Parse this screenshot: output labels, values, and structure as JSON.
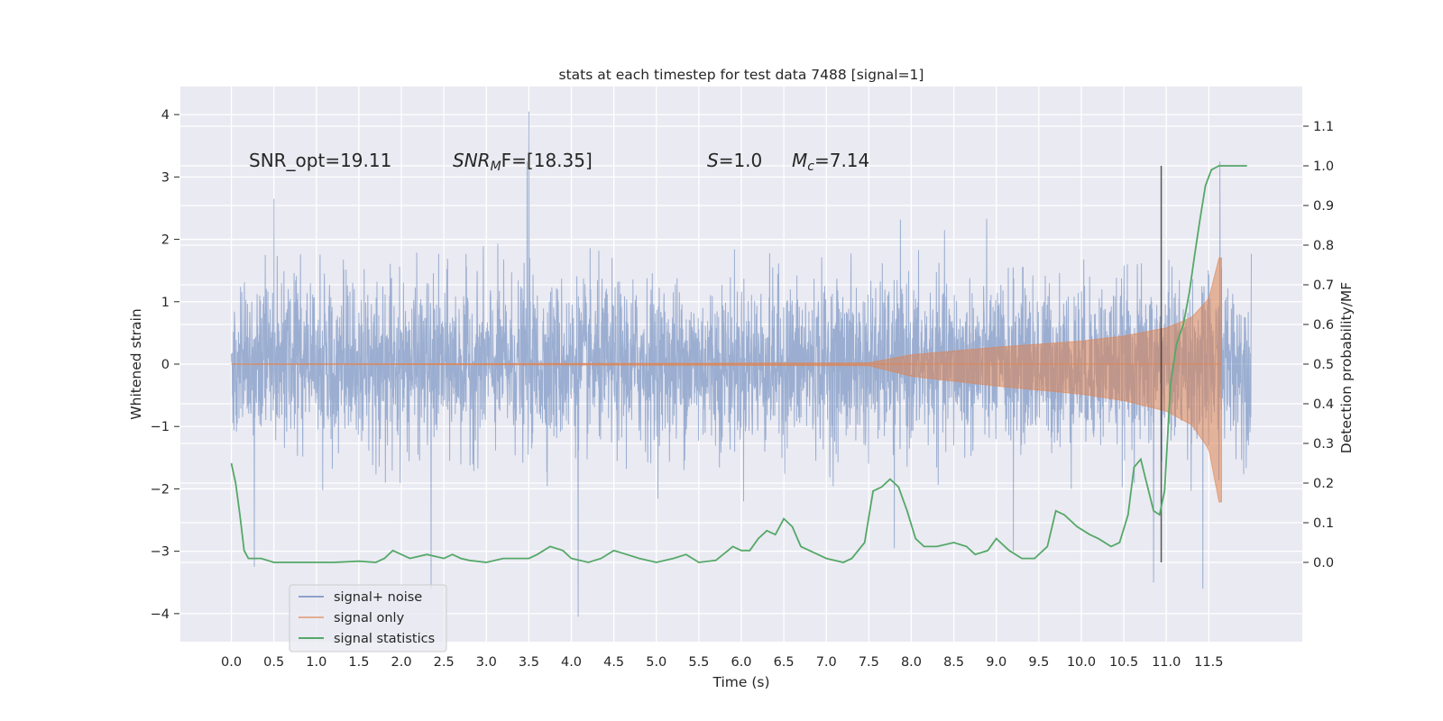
{
  "chart_data": {
    "type": "line",
    "title": "stats at each timestep for test data 7488 [signal=1]",
    "xlabel": "Time (s)",
    "ylabel": "Whitened strain",
    "ylabel_right": "Detection probability/MF",
    "xlim": [
      -0.6,
      12.6
    ],
    "ylim": [
      -4.45,
      4.45
    ],
    "ylim_right": [
      -0.2,
      1.2
    ],
    "x_ticks": [
      "0.0",
      "0.5",
      "1.0",
      "1.5",
      "2.0",
      "2.5",
      "3.0",
      "3.5",
      "4.0",
      "4.5",
      "5.0",
      "5.5",
      "6.0",
      "6.5",
      "7.0",
      "7.5",
      "8.0",
      "8.5",
      "9.0",
      "9.5",
      "10.0",
      "10.5",
      "11.0",
      "11.5"
    ],
    "y_ticks": [
      "−4",
      "−3",
      "−2",
      "−1",
      "0",
      "1",
      "2",
      "3",
      "4"
    ],
    "y_ticks_right": [
      "0.0",
      "0.1",
      "0.2",
      "0.3",
      "0.4",
      "0.5",
      "0.6",
      "0.7",
      "0.8",
      "0.9",
      "1.0",
      "1.1"
    ],
    "grid": true,
    "legend_position": "lower-left",
    "annotations": {
      "snr_opt": "SNR_opt=19.11",
      "snr_mf_symbol": "SNR",
      "snr_mf_sub": "M",
      "snr_mf_rest": "F=[18.35]",
      "s_symbol": "S",
      "s_rest": "=1.0",
      "mc_symbol": "M",
      "mc_sub": "c",
      "mc_rest": "=7.14"
    },
    "vertical_line_x": 10.94,
    "series": [
      {
        "name": "signal+ noise",
        "color": "#4c72b0",
        "axis": "left",
        "x_range": [
          0.0,
          12.0
        ],
        "std": 0.65,
        "peaks": [
          {
            "x": 0.27,
            "y": -3.25
          },
          {
            "x": 0.5,
            "y": 2.65
          },
          {
            "x": 2.35,
            "y": -3.6
          },
          {
            "x": 3.5,
            "y": 4.05
          },
          {
            "x": 4.08,
            "y": -4.05
          },
          {
            "x": 10.85,
            "y": -3.5
          },
          {
            "x": 11.43,
            "y": -3.6
          },
          {
            "x": 11.63,
            "y": -3.7
          },
          {
            "x": 11.63,
            "y": 3.25
          },
          {
            "x": 3.48,
            "y": 3.25
          },
          {
            "x": 9.2,
            "y": -3.0
          },
          {
            "x": 7.8,
            "y": -2.95
          }
        ]
      },
      {
        "name": "signal only",
        "color": "#dd8452",
        "axis": "left",
        "x_range": [
          0.0,
          11.65
        ],
        "envelope": [
          {
            "x": 0.0,
            "y": 0.0
          },
          {
            "x": 7.5,
            "y": 0.02
          },
          {
            "x": 8.0,
            "y": 0.15
          },
          {
            "x": 9.0,
            "y": 0.27
          },
          {
            "x": 10.0,
            "y": 0.37
          },
          {
            "x": 10.5,
            "y": 0.45
          },
          {
            "x": 11.0,
            "y": 0.58
          },
          {
            "x": 11.3,
            "y": 0.75
          },
          {
            "x": 11.5,
            "y": 1.05
          },
          {
            "x": 11.62,
            "y": 1.7
          },
          {
            "x": 11.65,
            "y": 1.7
          }
        ]
      },
      {
        "name": "signal statistics",
        "color": "#55a868",
        "axis": "right",
        "points": [
          [
            0.0,
            0.25
          ],
          [
            0.05,
            0.2
          ],
          [
            0.1,
            0.12
          ],
          [
            0.15,
            0.03
          ],
          [
            0.2,
            0.01
          ],
          [
            0.3,
            0.01
          ],
          [
            0.35,
            0.01
          ],
          [
            0.5,
            0.0
          ],
          [
            0.8,
            0.0
          ],
          [
            1.0,
            0.0
          ],
          [
            1.2,
            0.0
          ],
          [
            1.5,
            0.003
          ],
          [
            1.7,
            0.0
          ],
          [
            1.8,
            0.01
          ],
          [
            1.9,
            0.03
          ],
          [
            2.0,
            0.02
          ],
          [
            2.1,
            0.01
          ],
          [
            2.3,
            0.02
          ],
          [
            2.5,
            0.01
          ],
          [
            2.6,
            0.02
          ],
          [
            2.7,
            0.01
          ],
          [
            2.8,
            0.005
          ],
          [
            3.0,
            0.0
          ],
          [
            3.2,
            0.01
          ],
          [
            3.5,
            0.01
          ],
          [
            3.6,
            0.02
          ],
          [
            3.75,
            0.04
          ],
          [
            3.9,
            0.03
          ],
          [
            4.0,
            0.01
          ],
          [
            4.2,
            0.0
          ],
          [
            4.35,
            0.01
          ],
          [
            4.5,
            0.03
          ],
          [
            4.65,
            0.02
          ],
          [
            4.8,
            0.01
          ],
          [
            5.0,
            0.0
          ],
          [
            5.2,
            0.01
          ],
          [
            5.35,
            0.02
          ],
          [
            5.5,
            0.0
          ],
          [
            5.7,
            0.005
          ],
          [
            5.9,
            0.04
          ],
          [
            6.0,
            0.03
          ],
          [
            6.1,
            0.03
          ],
          [
            6.2,
            0.06
          ],
          [
            6.3,
            0.08
          ],
          [
            6.4,
            0.07
          ],
          [
            6.5,
            0.11
          ],
          [
            6.6,
            0.09
          ],
          [
            6.7,
            0.04
          ],
          [
            6.9,
            0.02
          ],
          [
            7.0,
            0.01
          ],
          [
            7.2,
            0.0
          ],
          [
            7.3,
            0.01
          ],
          [
            7.45,
            0.05
          ],
          [
            7.55,
            0.18
          ],
          [
            7.65,
            0.19
          ],
          [
            7.75,
            0.21
          ],
          [
            7.85,
            0.19
          ],
          [
            7.95,
            0.13
          ],
          [
            8.05,
            0.06
          ],
          [
            8.15,
            0.04
          ],
          [
            8.3,
            0.04
          ],
          [
            8.5,
            0.05
          ],
          [
            8.65,
            0.04
          ],
          [
            8.75,
            0.02
          ],
          [
            8.9,
            0.03
          ],
          [
            9.0,
            0.06
          ],
          [
            9.15,
            0.03
          ],
          [
            9.3,
            0.01
          ],
          [
            9.45,
            0.01
          ],
          [
            9.6,
            0.04
          ],
          [
            9.7,
            0.13
          ],
          [
            9.8,
            0.12
          ],
          [
            9.95,
            0.09
          ],
          [
            10.1,
            0.07
          ],
          [
            10.2,
            0.06
          ],
          [
            10.35,
            0.04
          ],
          [
            10.45,
            0.05
          ],
          [
            10.55,
            0.12
          ],
          [
            10.62,
            0.24
          ],
          [
            10.7,
            0.26
          ],
          [
            10.78,
            0.19
          ],
          [
            10.85,
            0.13
          ],
          [
            10.92,
            0.12
          ],
          [
            10.98,
            0.18
          ],
          [
            11.05,
            0.45
          ],
          [
            11.12,
            0.55
          ],
          [
            11.2,
            0.6
          ],
          [
            11.27,
            0.68
          ],
          [
            11.33,
            0.77
          ],
          [
            11.4,
            0.87
          ],
          [
            11.46,
            0.95
          ],
          [
            11.53,
            0.99
          ],
          [
            11.62,
            1.0
          ],
          [
            11.8,
            1.0
          ],
          [
            11.95,
            1.0
          ]
        ]
      }
    ]
  }
}
